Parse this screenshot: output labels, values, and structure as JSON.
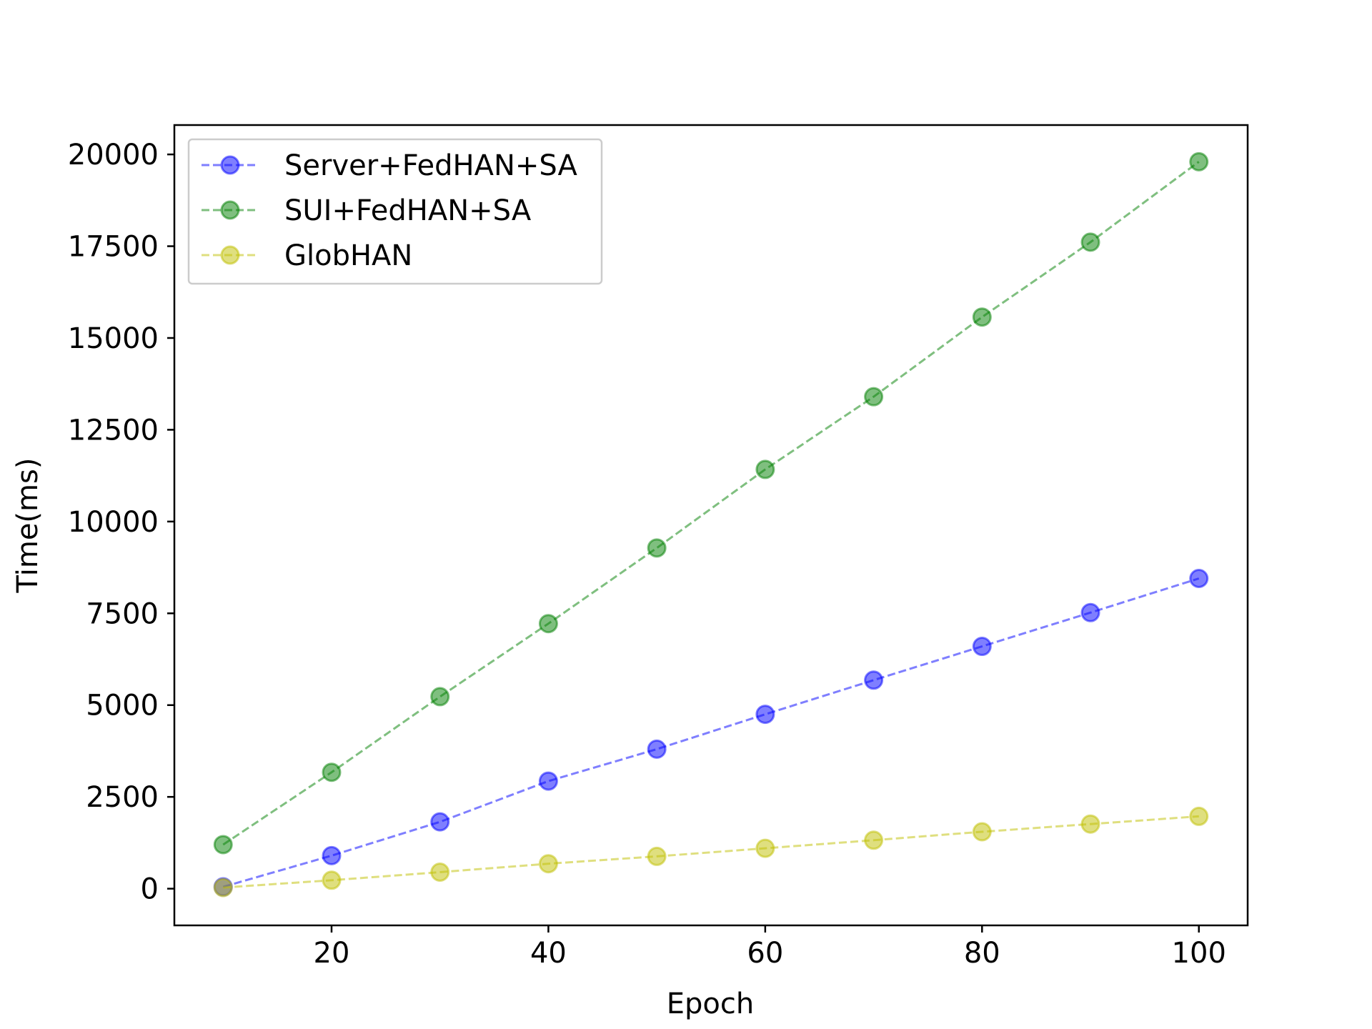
{
  "chart_data": {
    "type": "line",
    "title": "",
    "xlabel": "Epoch",
    "ylabel": "Time(ms)",
    "xlim": [
      5.5,
      104.5
    ],
    "ylim": [
      -1000,
      20800
    ],
    "x_ticks": [
      20,
      40,
      60,
      80,
      100
    ],
    "y_ticks": [
      0,
      2500,
      5000,
      7500,
      10000,
      12500,
      15000,
      17500,
      20000
    ],
    "grid": false,
    "legend_position": "upper-left",
    "x": [
      10,
      20,
      30,
      40,
      50,
      60,
      70,
      80,
      90,
      100
    ],
    "series": [
      {
        "name": "Server+FedHAN+SA",
        "color": "#0000ff",
        "line_style": "dashed",
        "marker": "circle",
        "values": [
          50,
          900,
          1820,
          2930,
          3800,
          4750,
          5680,
          6600,
          7520,
          8450
        ]
      },
      {
        "name": "SUI+FedHAN+SA",
        "color": "#008000",
        "line_style": "dashed",
        "marker": "circle",
        "values": [
          1200,
          3170,
          5230,
          7220,
          9280,
          11420,
          13400,
          15570,
          17610,
          19800
        ]
      },
      {
        "name": "GlobHAN",
        "color": "#bfbf00",
        "line_style": "dashed",
        "marker": "circle",
        "values": [
          30,
          230,
          450,
          680,
          880,
          1100,
          1320,
          1550,
          1760,
          1970
        ]
      }
    ]
  }
}
